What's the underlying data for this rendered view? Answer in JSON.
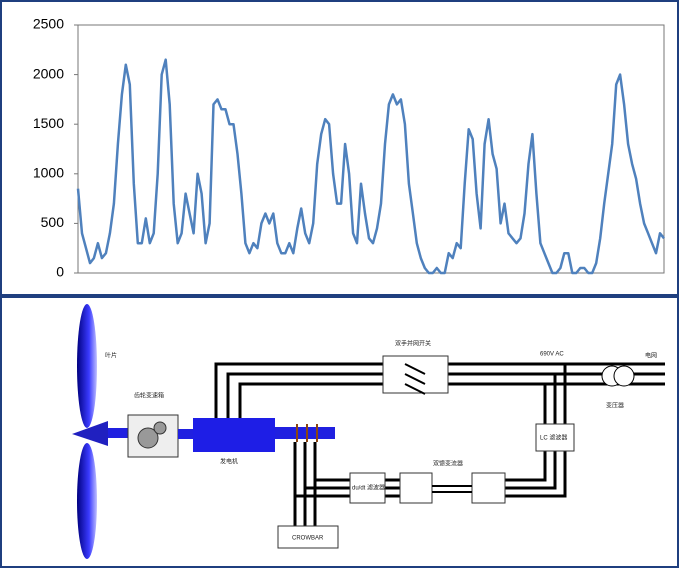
{
  "chart_data": {
    "type": "line",
    "series": [
      {
        "color": "#4f81bd",
        "values": [
          850,
          400,
          250,
          100,
          150,
          300,
          150,
          200,
          400,
          700,
          1300,
          1800,
          2100,
          1900,
          900,
          300,
          300,
          550,
          300,
          400,
          1000,
          2000,
          2150,
          1700,
          700,
          300,
          400,
          800,
          600,
          400,
          1000,
          800,
          300,
          500,
          1700,
          1750,
          1650,
          1650,
          1500,
          1500,
          1200,
          800,
          300,
          200,
          300,
          250,
          500,
          600,
          500,
          600,
          300,
          200,
          200,
          300,
          200,
          450,
          650,
          400,
          300,
          500,
          1100,
          1400,
          1550,
          1500,
          1000,
          700,
          700,
          1300,
          1000,
          400,
          300,
          900,
          600,
          350,
          300,
          450,
          700,
          1300,
          1700,
          1800,
          1700,
          1750,
          1500,
          900,
          600,
          300,
          150,
          50,
          0,
          0,
          50,
          0,
          0,
          200,
          150,
          300,
          250,
          900,
          1450,
          1350,
          800,
          450,
          1300,
          1550,
          1200,
          1050,
          500,
          700,
          400,
          350,
          300,
          350,
          600,
          1100,
          1400,
          800,
          300,
          200,
          100,
          0,
          0,
          50,
          200,
          200,
          0,
          0,
          50,
          50,
          0,
          0,
          100,
          350,
          700,
          1000,
          1300,
          1900,
          2000,
          1700,
          1300,
          1100,
          950,
          700,
          500,
          400,
          300,
          200,
          400,
          350
        ]
      }
    ],
    "ylim": [
      0,
      2500
    ],
    "yticks": [
      0,
      500,
      1000,
      1500,
      2000,
      2500
    ]
  },
  "diagram": {
    "labels": {
      "blade": "叶片",
      "gearbox": "齿轮变速箱",
      "generator": "发电机",
      "switch": "双手并网开关",
      "voltage": "690V AC",
      "grid": "电网",
      "transformer": "变压器",
      "lc_filter": "LC 滤波器",
      "dudt_filter": "du/dt 滤波器",
      "converter": "双馈变流器",
      "crowbar": "CROWBAR"
    }
  }
}
